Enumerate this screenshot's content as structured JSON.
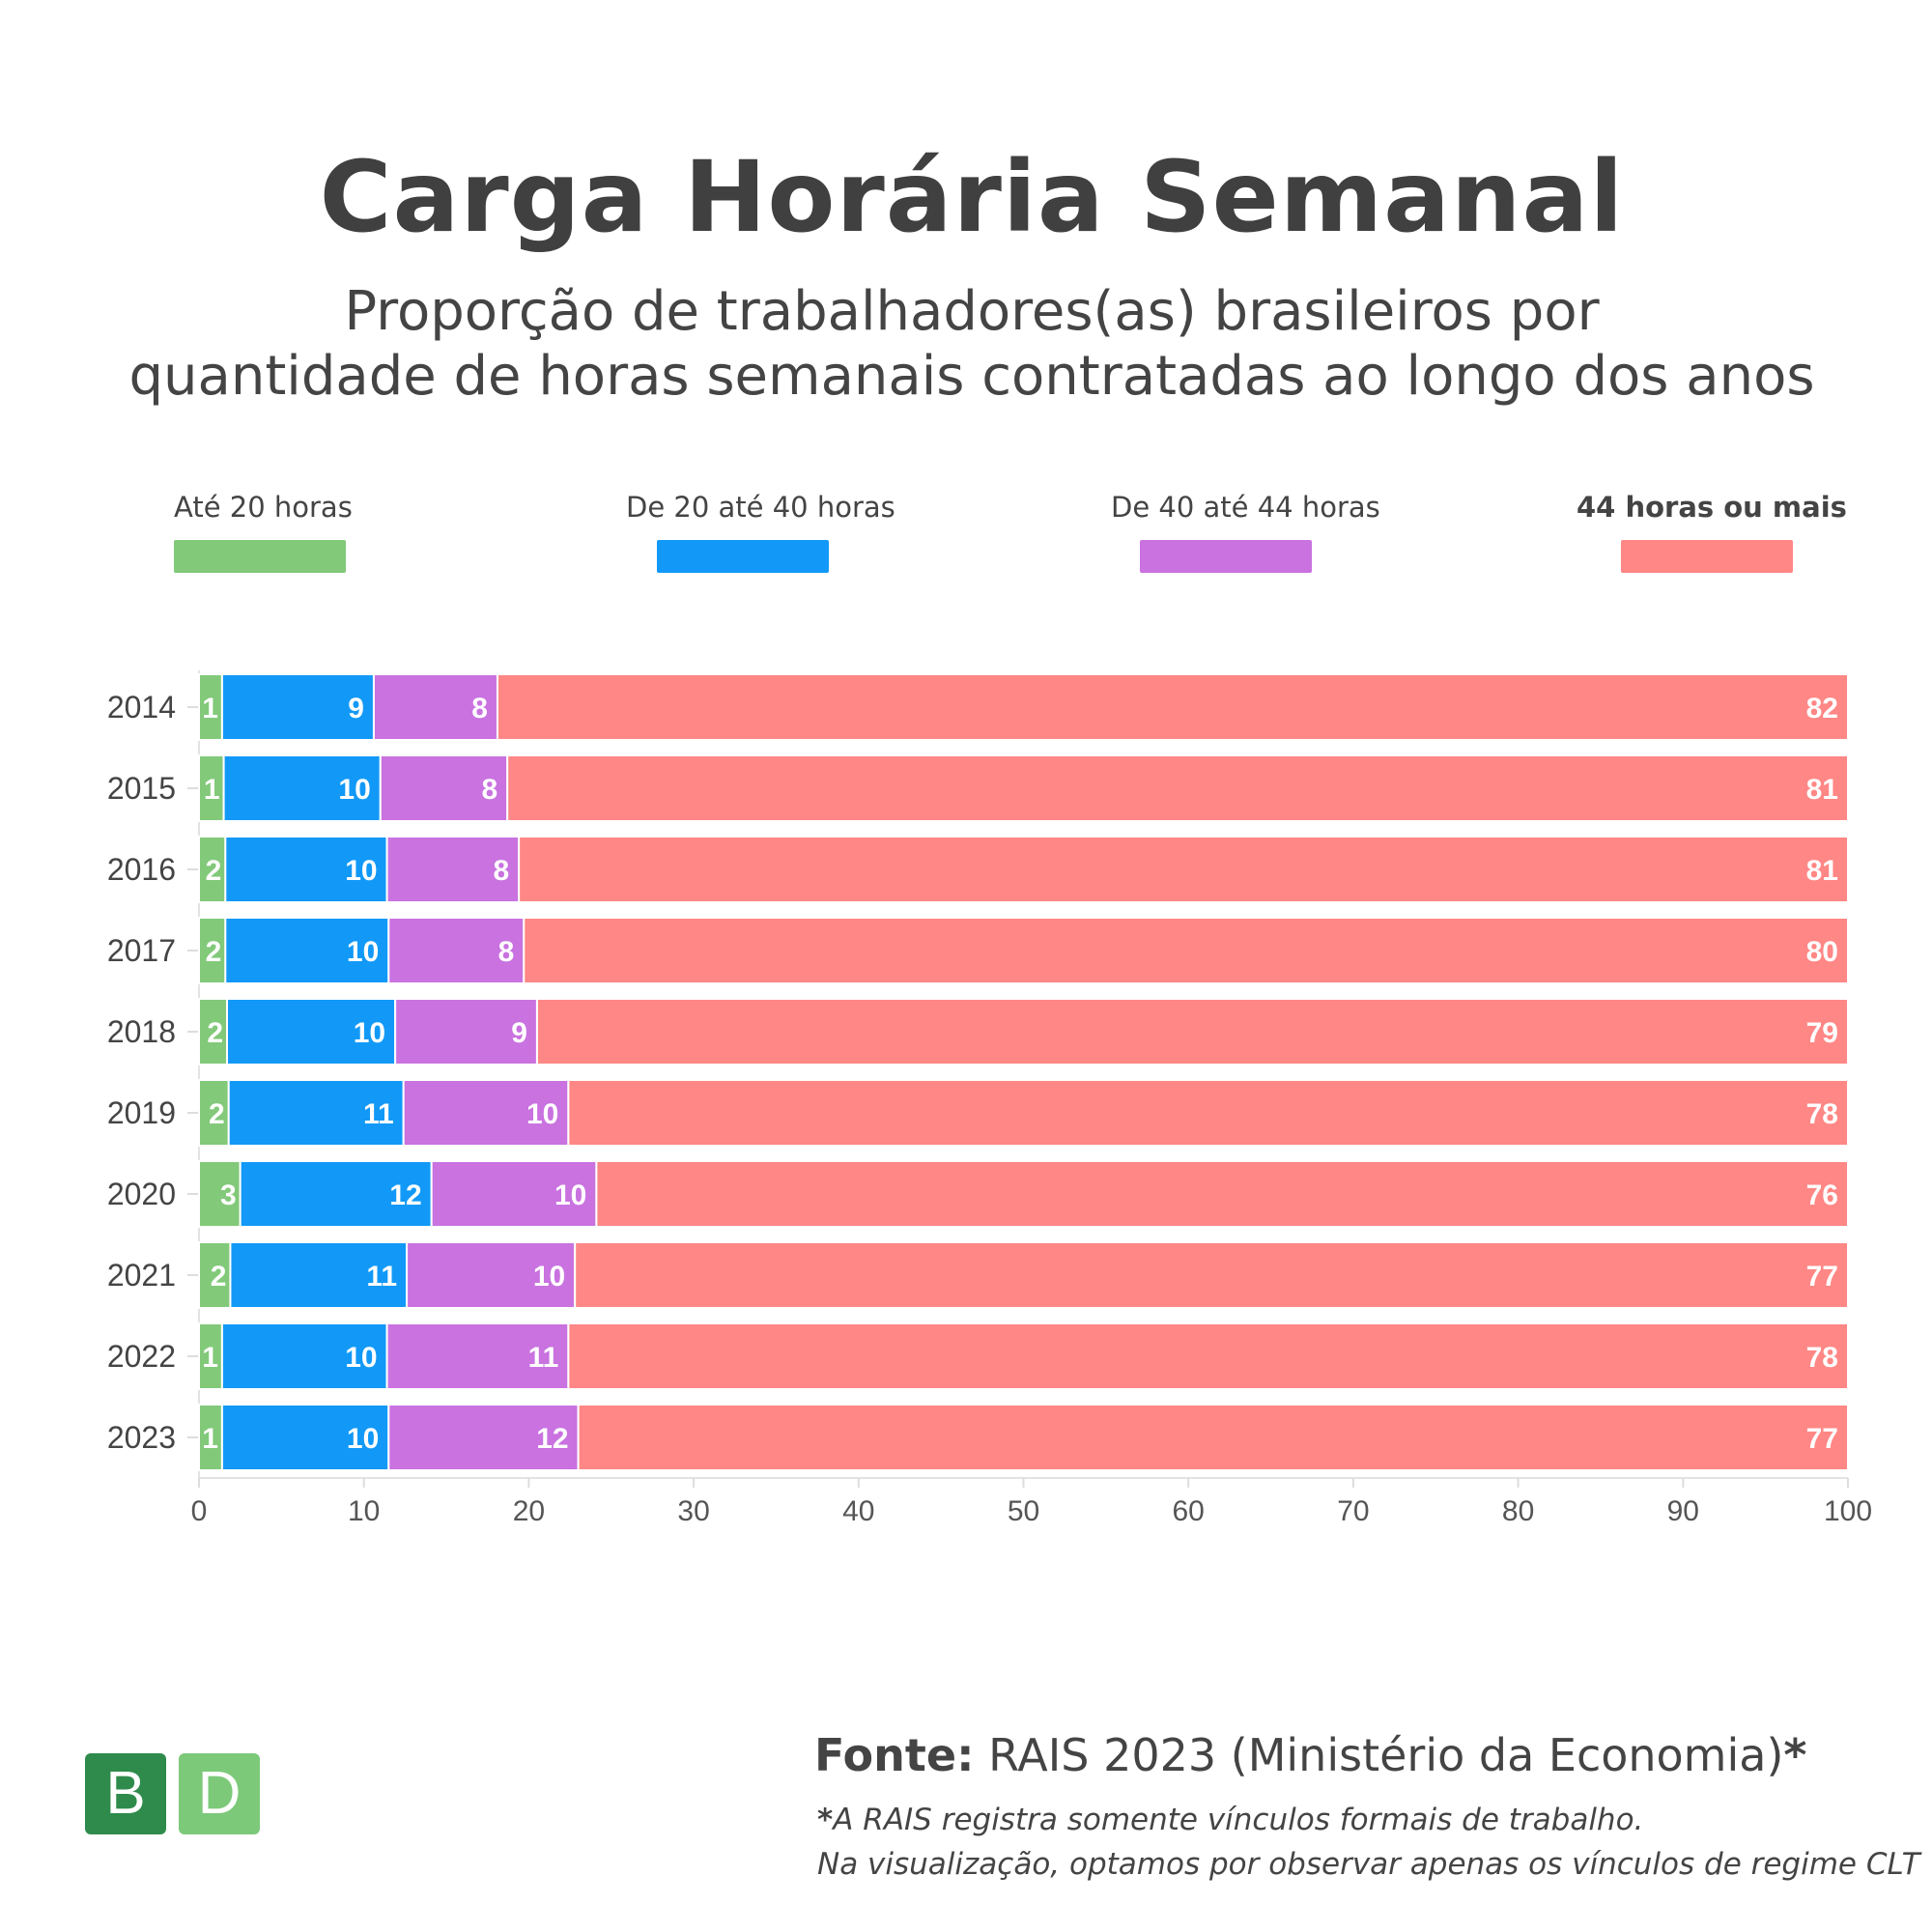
{
  "title": "Carga Horária Semanal",
  "subtitle": [
    "Proporção de trabalhadores(as) brasileiros por",
    "quantidade de horas semanais contratadas ao longo dos anos"
  ],
  "legend": [
    {
      "label": "Até 20 horas",
      "color": "#82c97a",
      "bold": false
    },
    {
      "label": "De 20 até 40 horas",
      "color": "#1299f7",
      "bold": false
    },
    {
      "label": "De 40 até 44 horas",
      "color": "#c972e0",
      "bold": false
    },
    {
      "label": "44 horas ou mais",
      "color": "#ff8785",
      "bold": true
    }
  ],
  "chart_data": {
    "type": "bar",
    "orientation": "horizontal",
    "stacked": true,
    "categories": [
      "2014",
      "2015",
      "2016",
      "2017",
      "2018",
      "2019",
      "2020",
      "2021",
      "2022",
      "2023"
    ],
    "series": [
      {
        "name": "Até 20 horas",
        "color": "#82c97a",
        "values": [
          1.4,
          1.5,
          1.6,
          1.6,
          1.7,
          1.8,
          2.5,
          1.9,
          1.4,
          1.4
        ],
        "labels": [
          "1",
          "1",
          "2",
          "2",
          "2",
          "2",
          "3",
          "2",
          "1",
          "1"
        ]
      },
      {
        "name": "De 20 até 40 horas",
        "color": "#1299f7",
        "values": [
          9.2,
          9.5,
          9.8,
          9.9,
          10.2,
          10.6,
          11.6,
          10.7,
          10.0,
          10.1
        ],
        "labels": [
          "9",
          "10",
          "10",
          "10",
          "10",
          "11",
          "12",
          "11",
          "10",
          "10"
        ]
      },
      {
        "name": "De 40 até 44 horas",
        "color": "#c972e0",
        "values": [
          7.5,
          7.7,
          8.0,
          8.2,
          8.6,
          10.0,
          10.0,
          10.2,
          11.0,
          11.5
        ],
        "labels": [
          "8",
          "8",
          "8",
          "8",
          "9",
          "10",
          "10",
          "10",
          "11",
          "12"
        ]
      },
      {
        "name": "44 horas ou mais",
        "color": "#ff8785",
        "values": [
          81.9,
          81.3,
          80.6,
          80.3,
          79.5,
          77.6,
          75.9,
          77.2,
          77.6,
          77.0
        ],
        "labels": [
          "82",
          "81",
          "81",
          "80",
          "79",
          "78",
          "76",
          "77",
          "78",
          "77"
        ]
      }
    ],
    "xlim": [
      0,
      100
    ],
    "xticks": [
      "0",
      "10",
      "20",
      "30",
      "40",
      "50",
      "60",
      "70",
      "80",
      "90",
      "100"
    ],
    "legend_position": "top"
  },
  "source": {
    "prefix": "Fonte:",
    "text": "RAIS 2023 (Ministério da Economia)",
    "star": "*"
  },
  "note": {
    "star": "*",
    "line1": "A RAIS registra somente vínculos formais de trabalho.",
    "line2": "Na visualização, optamos por observar apenas os vínculos de regime CLT"
  },
  "logo": {
    "letter1": "B",
    "letter2": "D",
    "color1": "#2e8b4c",
    "color2": "#7cc97a"
  }
}
